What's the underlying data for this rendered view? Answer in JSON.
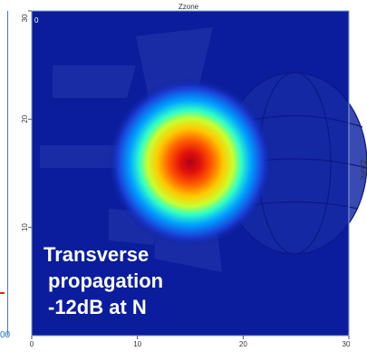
{
  "chart_data": {
    "type": "heatmap",
    "title": "Zzone",
    "right_label": "Zzone",
    "xlim": [
      0,
      30
    ],
    "ylim": [
      0,
      30
    ],
    "x_ticks": [
      "0",
      "10",
      "20",
      "30"
    ],
    "y_ticks": [
      "10",
      "20",
      "30"
    ],
    "colormap": "jet",
    "background_color": "#0b1d9c",
    "hotspot": {
      "x": 15,
      "y": 16,
      "sigma_x": 2.6,
      "sigma_y": 2.6,
      "peak": 1.0
    },
    "annotation_lines": [
      "Transverse",
      "propagation",
      "-12dB at N"
    ],
    "corner_marker": "0"
  },
  "left_strip": {
    "tick_fragment": "00"
  }
}
